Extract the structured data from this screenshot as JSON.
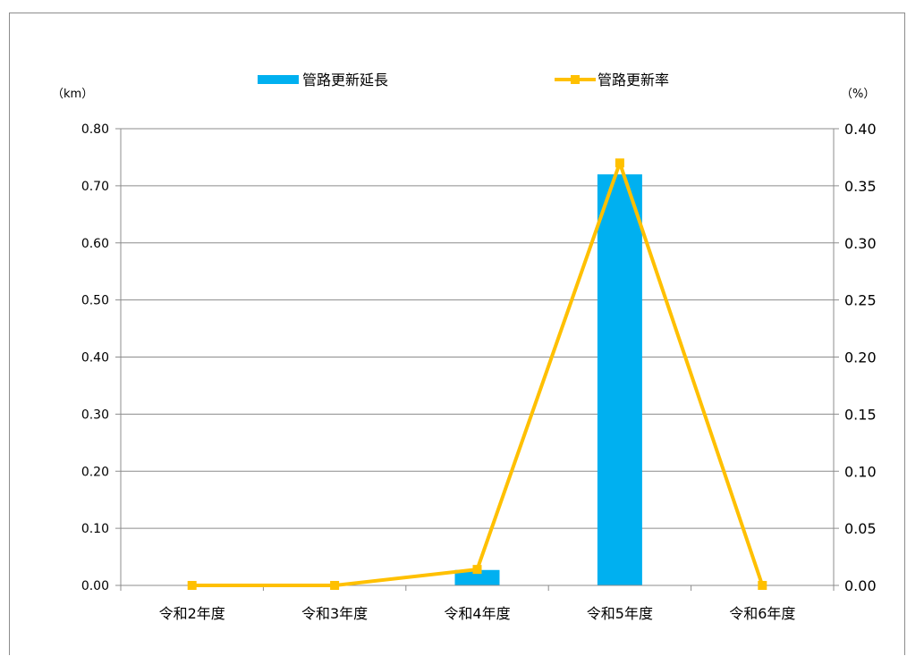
{
  "chart_data": {
    "type": "bar+line",
    "categories": [
      "令和2年度",
      "令和3年度",
      "令和4年度",
      "令和5年度",
      "令和6年度"
    ],
    "series": [
      {
        "name": "管路更新延長",
        "type": "bar",
        "axis": "left",
        "color": "#00b0f0",
        "values": [
          0,
          0,
          0.027,
          0.72,
          0
        ]
      },
      {
        "name": "管路更新率",
        "type": "line",
        "axis": "right",
        "color": "#ffc000",
        "values": [
          0.0,
          0.0,
          0.014,
          0.37,
          0.0
        ]
      }
    ],
    "y_left": {
      "unit": "（km）",
      "ylim": [
        0,
        0.8
      ],
      "ticks": [
        "0.00",
        "0.10",
        "0.20",
        "0.30",
        "0.40",
        "0.50",
        "0.60",
        "0.70",
        "0.80"
      ]
    },
    "y_right": {
      "unit": "（%）",
      "ylim": [
        0,
        0.4
      ],
      "ticks": [
        "0.00",
        "0.05",
        "0.10",
        "0.15",
        "0.20",
        "0.25",
        "0.30",
        "0.35",
        "0.40"
      ]
    },
    "grid": true,
    "legend_position": "top"
  }
}
